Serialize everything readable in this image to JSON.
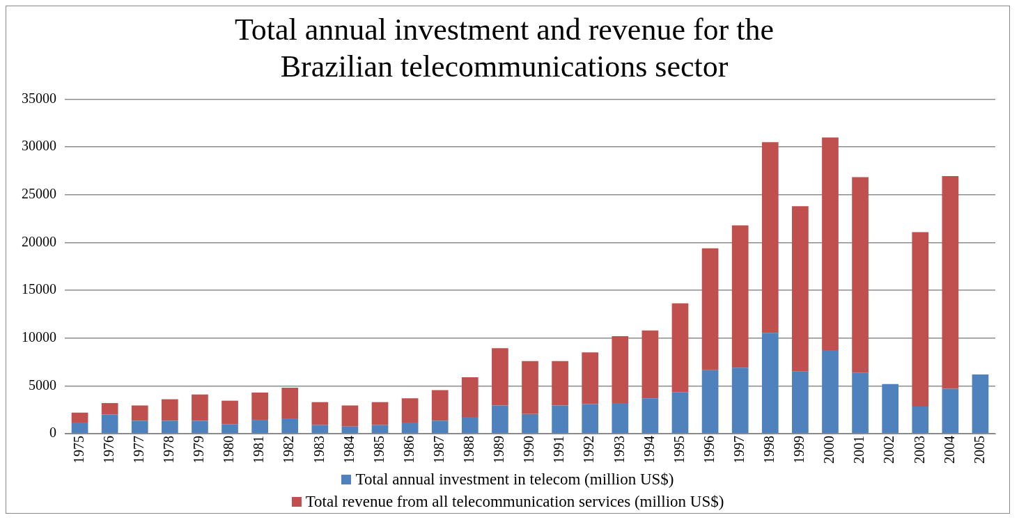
{
  "chart_data": {
    "type": "bar",
    "title": "Total annual investment and revenue for the Brazilian telecommunications sector",
    "categories": [
      "1975",
      "1976",
      "1977",
      "1978",
      "1979",
      "1980",
      "1981",
      "1982",
      "1983",
      "1984",
      "1985",
      "1986",
      "1987",
      "1988",
      "1989",
      "1990",
      "1991",
      "1992",
      "1993",
      "1994",
      "1995",
      "1996",
      "1997",
      "1998",
      "1999",
      "2000",
      "2001",
      "2002",
      "2003",
      "2004",
      "2005"
    ],
    "series": [
      {
        "name": "Total annual investment in telecom (million US$)",
        "color": "#4f81bd",
        "values": [
          1100,
          2000,
          1350,
          1350,
          1350,
          1000,
          1450,
          1600,
          900,
          750,
          900,
          1100,
          1350,
          1750,
          2950,
          2050,
          2950,
          3100,
          3200,
          3700,
          4350,
          6650,
          6900,
          10550,
          6500,
          8750,
          6400,
          5200,
          2850,
          4700,
          6200
        ]
      },
      {
        "name": "Total revenue from all telecommunication services (million US$)",
        "color": "#c0504d",
        "values": [
          1100,
          1200,
          1600,
          2250,
          2750,
          2450,
          2850,
          3200,
          2400,
          2200,
          2400,
          2600,
          3200,
          4150,
          6000,
          5550,
          4650,
          5400,
          7000,
          7100,
          9300,
          12750,
          14900,
          19950,
          17300,
          22250,
          20450,
          null,
          18250,
          22250,
          null
        ]
      }
    ],
    "stacked": true,
    "ylim": [
      0,
      35000
    ],
    "yticks": [
      0,
      5000,
      10000,
      15000,
      20000,
      25000,
      30000,
      35000
    ],
    "grid": "y",
    "legend": "bottom"
  }
}
